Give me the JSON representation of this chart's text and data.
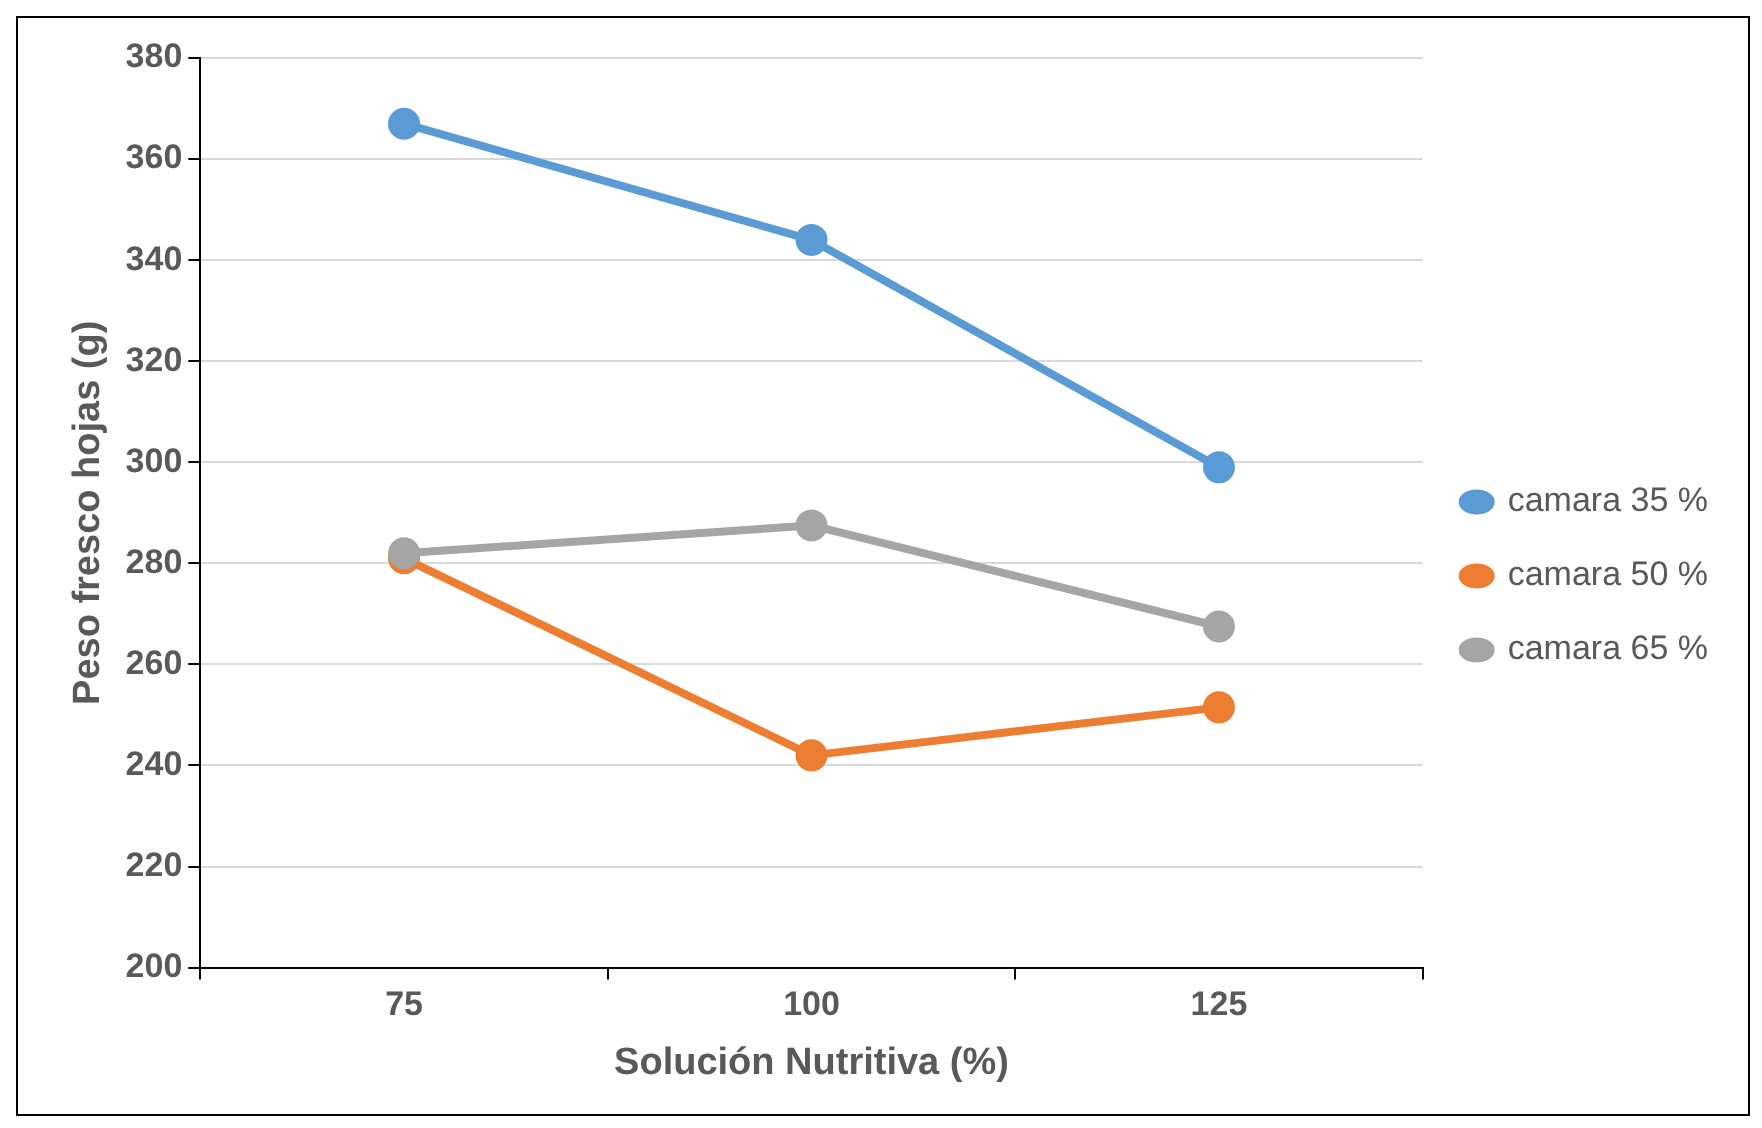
{
  "chart_data": {
    "type": "line",
    "xlabel": "Solución Nutritiva (%)",
    "ylabel": "Peso fresco hojas (g)",
    "categories": [
      "75",
      "100",
      "125"
    ],
    "series": [
      {
        "name": "camara 35 %",
        "color": "#5b9bd5",
        "values": [
          367,
          344,
          299
        ]
      },
      {
        "name": "camara 50 %",
        "color": "#ed7d31",
        "values": [
          281,
          242,
          251.5
        ]
      },
      {
        "name": "camara 65 %",
        "color": "#a5a5a5",
        "values": [
          282,
          287.5,
          267.5
        ]
      }
    ],
    "ylim": [
      200,
      380
    ],
    "yticks": [
      200,
      220,
      240,
      260,
      280,
      300,
      320,
      340,
      360,
      380
    ],
    "grid": "y",
    "legend": "right",
    "marker": "circle",
    "line_style": "solid"
  }
}
